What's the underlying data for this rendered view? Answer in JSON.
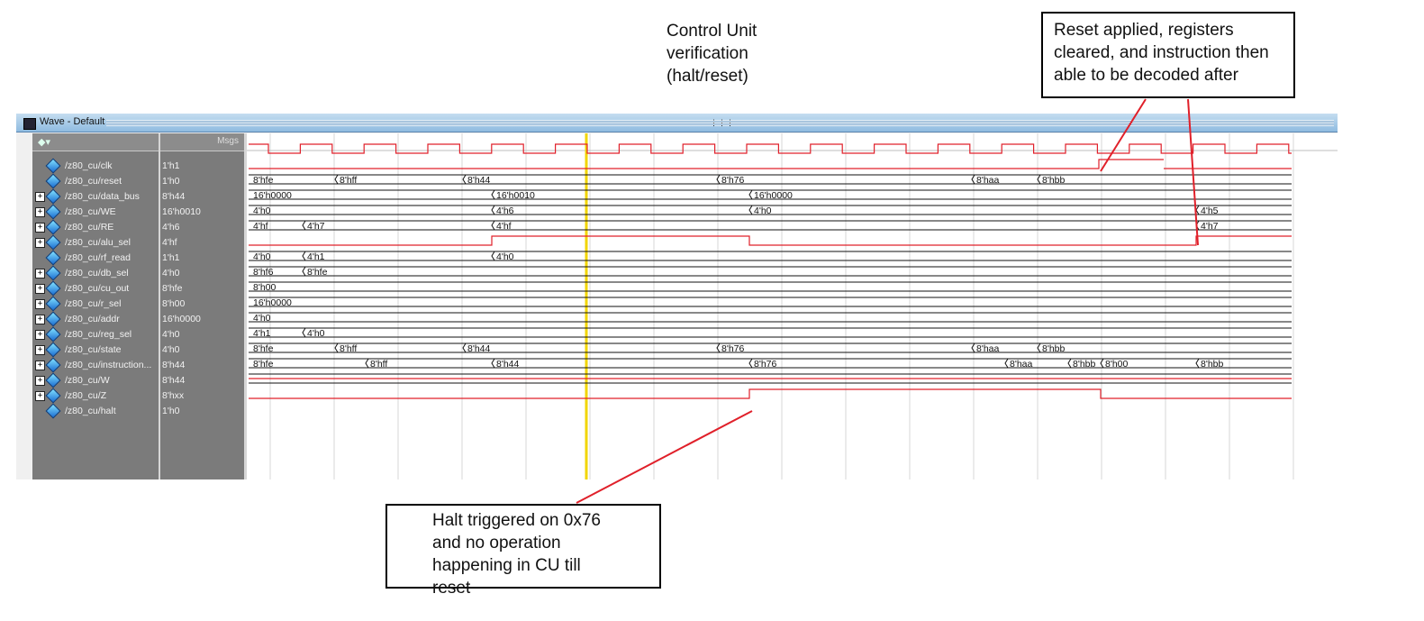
{
  "annotations": {
    "title": "Control Unit\nverification\n(halt/reset)",
    "reset_note": "Reset applied, registers\ncleared, and instruction then\nable to be decoded after",
    "halt_note": "Halt triggered on 0x76\nand no operation\nhappening in CU till reset"
  },
  "window": {
    "title": "Wave - Default",
    "msgs_header": "Msgs"
  },
  "signals": [
    {
      "name": "/z80_cu/clk",
      "value": "1'h1",
      "expandable": false,
      "kind": "clock"
    },
    {
      "name": "/z80_cu/reset",
      "value": "1'h0",
      "expandable": false,
      "kind": "bit",
      "transitions": [
        [
          0,
          1
        ]
      ]
    },
    {
      "name": "/z80_cu/data_bus",
      "value": "8'h44",
      "expandable": true,
      "kind": "bus",
      "segments": [
        {
          "label": "8'hfe"
        },
        {
          "label": "8'hff"
        },
        {
          "label": "8'h44"
        },
        {
          "label": "8'h76"
        },
        {
          "label": "8'haa"
        },
        {
          "label": "8'hbb"
        }
      ]
    },
    {
      "name": "/z80_cu/WE",
      "value": "16'h0010",
      "expandable": true,
      "kind": "bus",
      "segments": [
        {
          "label": "16'h0000"
        },
        {
          "label": "16'h0010"
        },
        {
          "label": "16'h0000"
        }
      ]
    },
    {
      "name": "/z80_cu/RE",
      "value": "4'h6",
      "expandable": true,
      "kind": "bus",
      "segments": [
        {
          "label": "4'h0"
        },
        {
          "label": "4'h6"
        },
        {
          "label": "4'h0"
        },
        {
          "label": "4'h5"
        }
      ]
    },
    {
      "name": "/z80_cu/alu_sel",
      "value": "4'hf",
      "expandable": true,
      "kind": "bus",
      "segments": [
        {
          "label": "4'hf"
        },
        {
          "label": "4'h7"
        },
        {
          "label": "4'hf"
        },
        {
          "label": "4'h7"
        }
      ]
    },
    {
      "name": "/z80_cu/rf_read",
      "value": "1'h1",
      "expandable": false,
      "kind": "bit"
    },
    {
      "name": "/z80_cu/db_sel",
      "value": "4'h0",
      "expandable": true,
      "kind": "bus",
      "segments": [
        {
          "label": "4'h0"
        },
        {
          "label": "4'h1"
        },
        {
          "label": "4'h0"
        }
      ]
    },
    {
      "name": "/z80_cu/cu_out",
      "value": "8'hfe",
      "expandable": true,
      "kind": "bus",
      "segments": [
        {
          "label": "8'hf6"
        },
        {
          "label": "8'hfe"
        }
      ]
    },
    {
      "name": "/z80_cu/r_sel",
      "value": "8'h00",
      "expandable": true,
      "kind": "bus",
      "segments": [
        {
          "label": "8'h00"
        }
      ]
    },
    {
      "name": "/z80_cu/addr",
      "value": "16'h0000",
      "expandable": true,
      "kind": "bus",
      "segments": [
        {
          "label": "16'h0000"
        }
      ]
    },
    {
      "name": "/z80_cu/reg_sel",
      "value": "4'h0",
      "expandable": true,
      "kind": "bus",
      "segments": [
        {
          "label": "4'h0"
        }
      ]
    },
    {
      "name": "/z80_cu/state",
      "value": "4'h0",
      "expandable": true,
      "kind": "bus",
      "segments": [
        {
          "label": "4'h1"
        },
        {
          "label": "4'h0"
        }
      ]
    },
    {
      "name": "/z80_cu/instruction...",
      "value": "8'h44",
      "expandable": true,
      "kind": "bus",
      "segments": [
        {
          "label": "8'hfe"
        },
        {
          "label": "8'hff"
        },
        {
          "label": "8'h44"
        },
        {
          "label": "8'h76"
        },
        {
          "label": "8'haa"
        },
        {
          "label": "8'hbb"
        }
      ]
    },
    {
      "name": "/z80_cu/W",
      "value": "8'h44",
      "expandable": true,
      "kind": "bus",
      "segments": [
        {
          "label": "8'hfe"
        },
        {
          "label": "8'hff"
        },
        {
          "label": "8'h44"
        },
        {
          "label": "8'h76"
        },
        {
          "label": "8'haa"
        },
        {
          "label": "8'hbb"
        },
        {
          "label": "8'h00"
        },
        {
          "label": "8'hbb"
        }
      ]
    },
    {
      "name": "/z80_cu/Z",
      "value": "8'hxx",
      "expandable": true,
      "kind": "bus",
      "segments": []
    },
    {
      "name": "/z80_cu/halt",
      "value": "1'h0",
      "expandable": false,
      "kind": "bit"
    }
  ],
  "colors": {
    "wave": "#e0202a",
    "cursor": "#f2d500",
    "grid": "#d7d7d7",
    "pane": "#7b7b7b"
  }
}
